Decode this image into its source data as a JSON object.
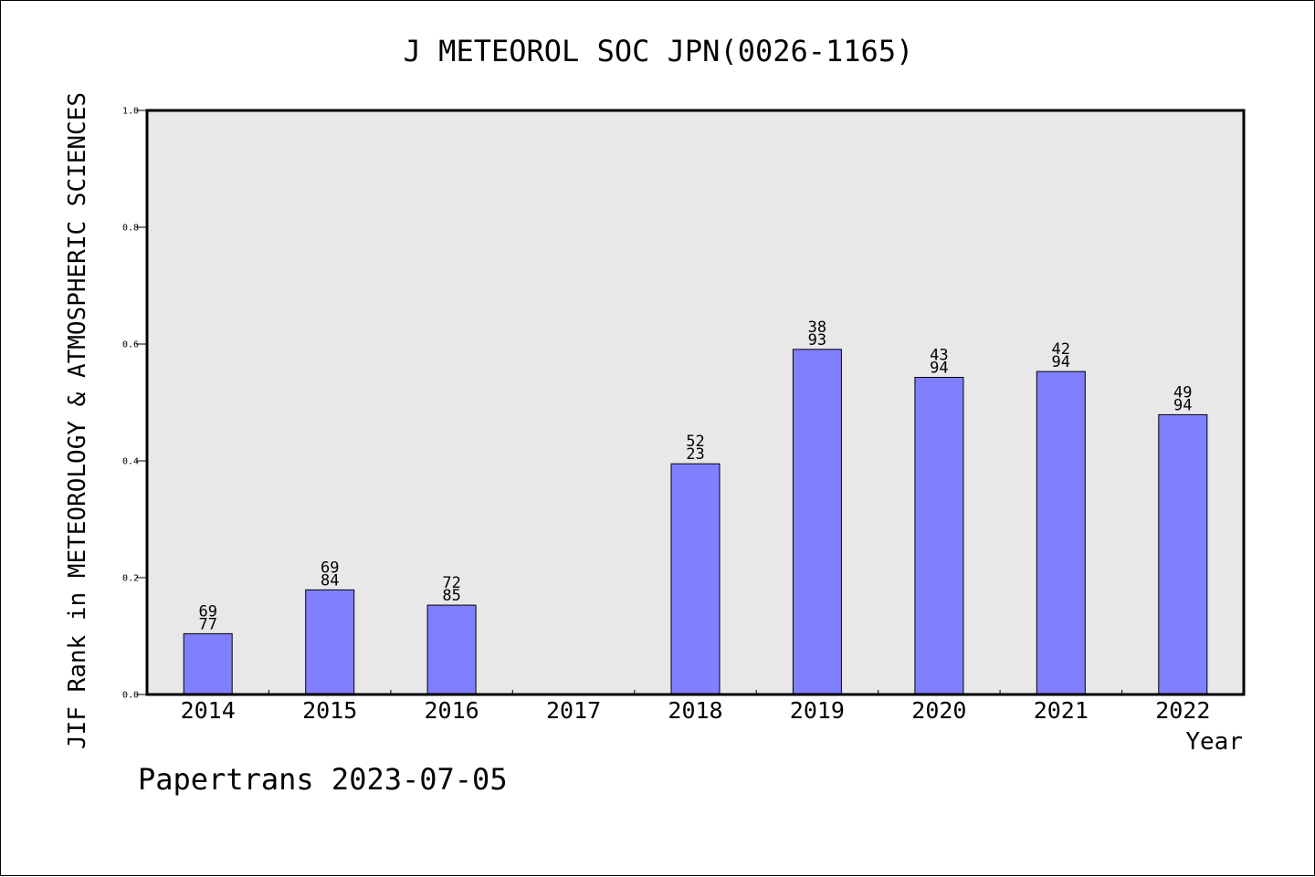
{
  "chart_data": {
    "type": "bar",
    "title": "J METEOROL SOC JPN(0026-1165)",
    "ylabel": "JIF Rank in METEOROLOGY & ATMOSPHERIC SCIENCES",
    "xlabel": "Year",
    "ylim": [
      0,
      1.0
    ],
    "yticks": [
      "0.0",
      "0.2",
      "0.4",
      "0.6",
      "0.8",
      "1.0"
    ],
    "ytick_values": [
      0,
      0.2,
      0.4,
      0.6,
      0.8,
      1.0
    ],
    "grid": false,
    "categories": [
      "2014",
      "2015",
      "2016",
      "2017",
      "2018",
      "2019",
      "2020",
      "2021",
      "2022"
    ],
    "values": [
      0.104,
      0.179,
      0.153,
      null,
      0.395,
      0.591,
      0.543,
      0.553,
      0.479
    ],
    "label_top": [
      "69",
      "69",
      "72",
      "",
      "52",
      "38",
      "43",
      "42",
      "49"
    ],
    "label_bottom": [
      "77",
      "84",
      "85",
      "",
      "23",
      "93",
      "94",
      "94",
      "94"
    ],
    "bar_color": "#8080ff",
    "plot_bg": "#e8e8e8",
    "footer": "Papertrans 2023-07-05"
  }
}
